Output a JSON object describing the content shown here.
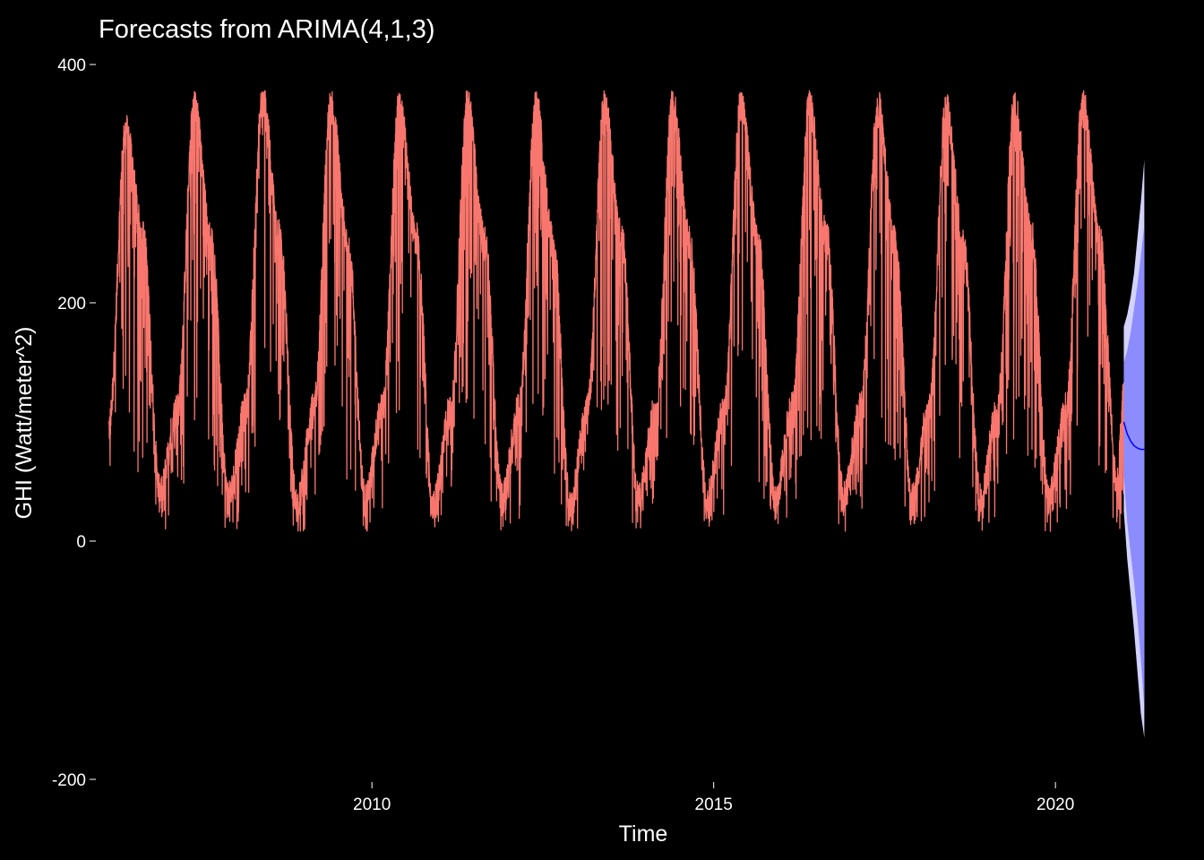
{
  "colors": {
    "background": "#000000",
    "text": "#ffffff",
    "observed": "#f8766d",
    "forecast_line": "#0000ff",
    "interval_80": "#8c8cff",
    "interval_95": "#d2d2ff"
  },
  "chart_data": {
    "type": "line",
    "title": "Forecasts from ARIMA(4,1,3)",
    "xlabel": "Time",
    "ylabel": "GHI (Watt/meter^2)",
    "xlim": [
      2006.0,
      2021.4
    ],
    "ylim": [
      -200,
      400
    ],
    "x_ticks": [
      2010,
      2015,
      2020
    ],
    "y_ticks": [
      -200,
      0,
      200,
      400
    ],
    "grid": false,
    "legend": "none",
    "series": [
      {
        "kind": "observed",
        "style": "line",
        "frequency": "daily",
        "start": 2006.15,
        "end": 2021.0,
        "x": [
          2006.15,
          2006.4,
          2006.65,
          2006.9,
          2007.15,
          2007.4,
          2007.65,
          2007.9,
          2008.15,
          2008.4,
          2008.65,
          2008.9,
          2009.15,
          2009.4,
          2009.65,
          2009.9,
          2010.15,
          2010.4,
          2010.65,
          2010.9,
          2011.15,
          2011.4,
          2011.65,
          2011.9,
          2012.15,
          2012.4,
          2012.65,
          2012.9,
          2013.15,
          2013.4,
          2013.65,
          2013.9,
          2014.15,
          2014.4,
          2014.65,
          2014.9,
          2015.15,
          2015.4,
          2015.65,
          2015.9,
          2016.15,
          2016.4,
          2016.65,
          2016.9,
          2017.15,
          2017.4,
          2017.65,
          2017.9,
          2018.15,
          2018.4,
          2018.65,
          2018.9,
          2019.15,
          2019.4,
          2019.65,
          2019.9,
          2020.15,
          2020.4,
          2020.65,
          2020.9,
          2021.0
        ],
        "values": [
          95,
          345,
          255,
          40,
          110,
          365,
          250,
          35,
          110,
          370,
          255,
          30,
          110,
          365,
          250,
          35,
          110,
          365,
          255,
          30,
          110,
          368,
          250,
          35,
          110,
          365,
          250,
          30,
          110,
          365,
          255,
          35,
          110,
          368,
          250,
          35,
          110,
          368,
          250,
          35,
          110,
          365,
          255,
          35,
          110,
          365,
          250,
          35,
          110,
          365,
          250,
          35,
          110,
          365,
          255,
          35,
          110,
          368,
          250,
          50,
          120
        ],
        "range_min": 8,
        "range_max": 378
      },
      {
        "kind": "forecast",
        "style": "line",
        "x": [
          2021.0,
          2021.05,
          2021.1,
          2021.15,
          2021.2,
          2021.25,
          2021.3
        ],
        "values": [
          100,
          90,
          84,
          80,
          78,
          77,
          77
        ]
      },
      {
        "kind": "interval_80",
        "style": "band",
        "x": [
          2021.0,
          2021.05,
          2021.1,
          2021.15,
          2021.2,
          2021.25,
          2021.3
        ],
        "lower": [
          55,
          15,
          -10,
          -35,
          -65,
          -100,
          -140
        ],
        "upper": [
          150,
          160,
          175,
          195,
          215,
          240,
          265
        ]
      },
      {
        "kind": "interval_95",
        "style": "band",
        "x": [
          2021.0,
          2021.05,
          2021.1,
          2021.15,
          2021.2,
          2021.25,
          2021.3
        ],
        "lower": [
          25,
          -15,
          -45,
          -75,
          -110,
          -145,
          -165
        ],
        "upper": [
          180,
          190,
          205,
          225,
          255,
          285,
          320
        ]
      }
    ]
  }
}
